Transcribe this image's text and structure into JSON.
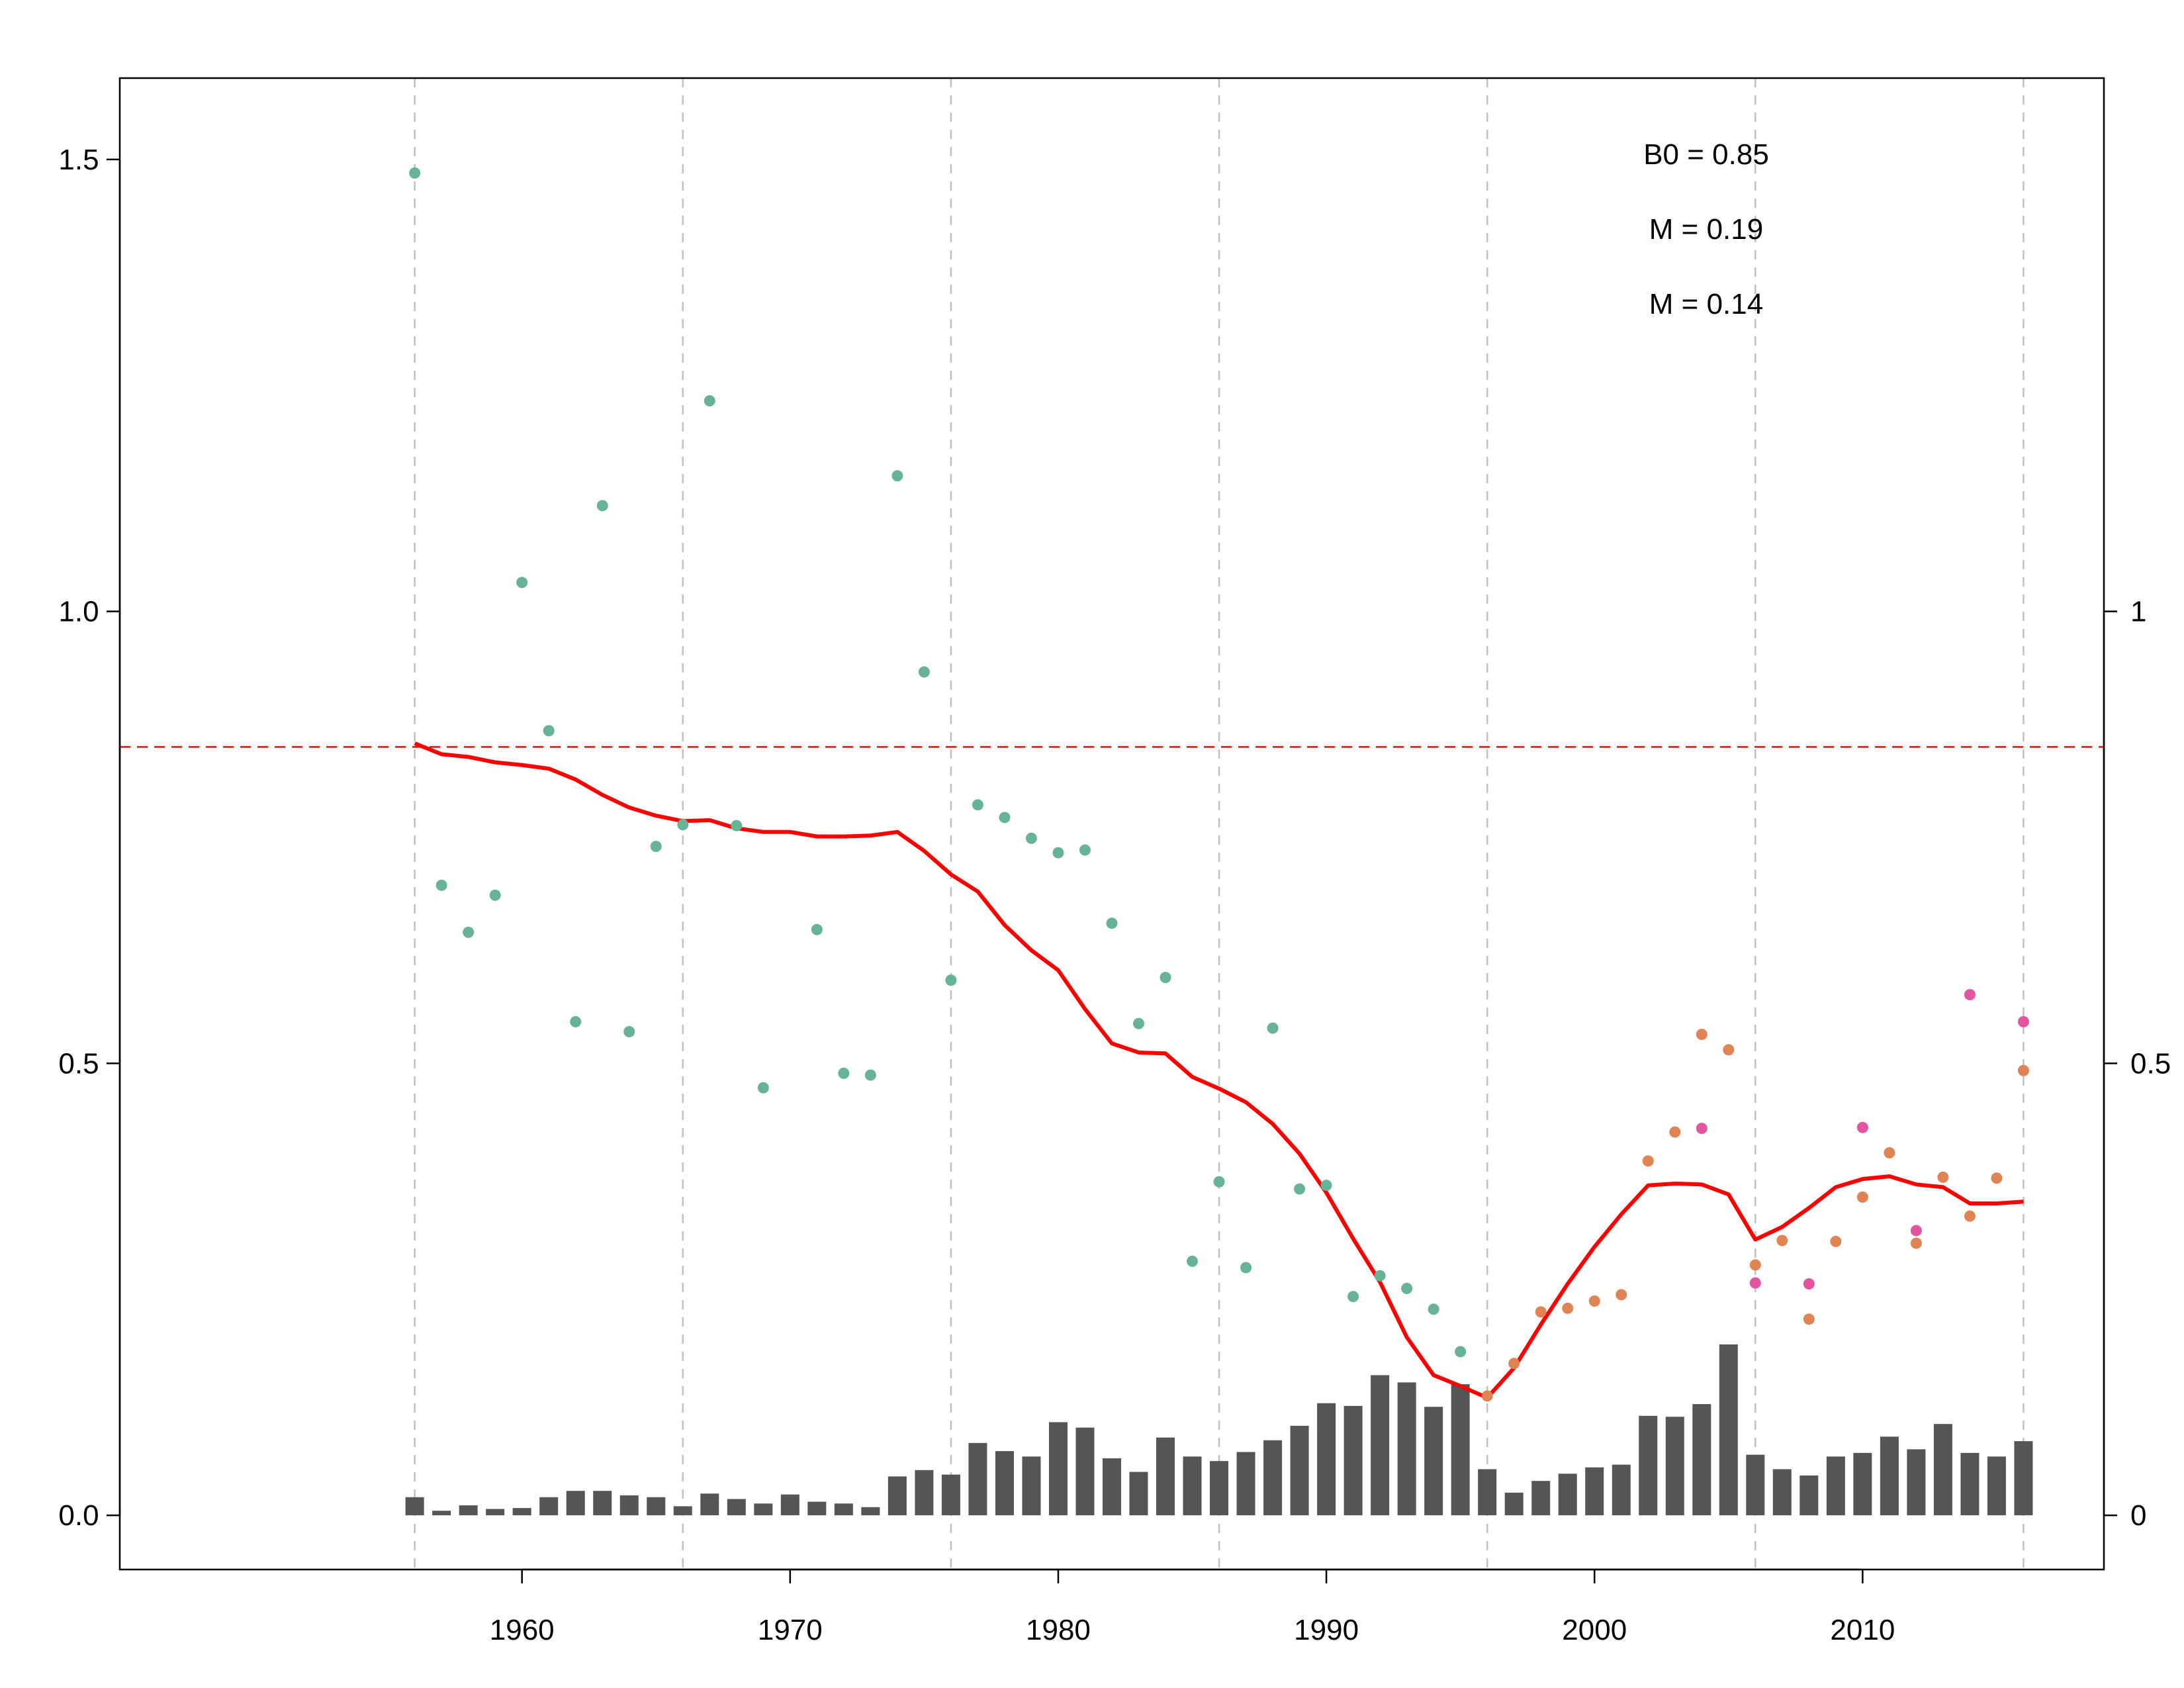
{
  "chart_data": {
    "type": "scatter",
    "title": "",
    "xlabel": "",
    "ylabel": "",
    "xlim": [
      1945,
      2019
    ],
    "ylim": [
      -0.06,
      1.59
    ],
    "y2lim": [
      -0.06,
      1.59
    ],
    "x_ticks": [
      "1960",
      "1970",
      "1980",
      "1990",
      "2000",
      "2010"
    ],
    "x_tick_values": [
      1960,
      1970,
      1980,
      1990,
      2000,
      2010
    ],
    "y_ticks": [
      "0.0",
      "0.5",
      "1.0",
      "1.5"
    ],
    "y_tick_values": [
      0,
      0.5,
      1.0,
      1.5
    ],
    "y2_ticks": [
      "0",
      "0.5",
      "1"
    ],
    "y2_tick_values": [
      0,
      0.5,
      1
    ],
    "vgrid": [
      1956,
      1966,
      1976,
      1986,
      1996,
      2006,
      2016
    ],
    "grid": "vertical dashed",
    "hline": {
      "name": "B0",
      "y": 0.85,
      "color": "#ff0000",
      "style": "dashed"
    },
    "annotations": [
      "B0 = 0.85",
      "M = 0.19",
      "M = 0.14"
    ],
    "annotation_placement": "top-right",
    "colors": {
      "line": "#ff0000",
      "bars": "#555555",
      "green": "#66b398",
      "orange": "#e08454",
      "pink": "#e4559f",
      "grid": "#c0c0c0"
    },
    "bars": {
      "x": [
        1956,
        1957,
        1958,
        1959,
        1960,
        1961,
        1962,
        1963,
        1964,
        1965,
        1966,
        1967,
        1968,
        1969,
        1970,
        1971,
        1972,
        1973,
        1974,
        1975,
        1976,
        1977,
        1978,
        1979,
        1980,
        1981,
        1982,
        1983,
        1984,
        1985,
        1986,
        1987,
        1988,
        1989,
        1990,
        1991,
        1992,
        1993,
        1994,
        1995,
        1996,
        1997,
        1998,
        1999,
        2000,
        2001,
        2002,
        2003,
        2004,
        2005,
        2006,
        2007,
        2008,
        2009,
        2010,
        2011,
        2012,
        2013,
        2014,
        2015,
        2016
      ],
      "values": [
        0.02,
        0.005,
        0.011,
        0.007,
        0.008,
        0.02,
        0.027,
        0.027,
        0.022,
        0.02,
        0.01,
        0.024,
        0.018,
        0.013,
        0.023,
        0.015,
        0.013,
        0.009,
        0.043,
        0.05,
        0.045,
        0.08,
        0.071,
        0.065,
        0.103,
        0.097,
        0.063,
        0.048,
        0.086,
        0.065,
        0.06,
        0.07,
        0.083,
        0.099,
        0.124,
        0.121,
        0.155,
        0.147,
        0.12,
        0.145,
        0.051,
        0.025,
        0.038,
        0.046,
        0.053,
        0.056,
        0.11,
        0.109,
        0.123,
        0.189,
        0.067,
        0.051,
        0.044,
        0.065,
        0.069,
        0.087,
        0.073,
        0.101,
        0.069,
        0.065,
        0.082
      ]
    },
    "series": [
      {
        "type": "line",
        "x": [
          1956,
          1957,
          1958,
          1959,
          1960,
          1961,
          1962,
          1963,
          1964,
          1965,
          1966,
          1967,
          1968,
          1969,
          1970,
          1971,
          1972,
          1973,
          1974,
          1975,
          1976,
          1977,
          1978,
          1979,
          1980,
          1981,
          1982,
          1983,
          1984,
          1985,
          1986,
          1987,
          1988,
          1989,
          1990,
          1991,
          1992,
          1993,
          1994,
          1995,
          1996,
          1997,
          1998,
          1999,
          2000,
          2001,
          2002,
          2003,
          2004,
          2005,
          2006,
          2007,
          2008,
          2009,
          2010,
          2011,
          2012,
          2013,
          2014,
          2015,
          2016
        ],
        "values": [
          0.854,
          0.842,
          0.839,
          0.833,
          0.83,
          0.826,
          0.814,
          0.797,
          0.783,
          0.774,
          0.768,
          0.769,
          0.76,
          0.756,
          0.756,
          0.751,
          0.751,
          0.752,
          0.756,
          0.735,
          0.709,
          0.69,
          0.653,
          0.625,
          0.603,
          0.56,
          0.522,
          0.512,
          0.511,
          0.485,
          0.472,
          0.457,
          0.433,
          0.4,
          0.357,
          0.306,
          0.258,
          0.197,
          0.155,
          0.143,
          0.13,
          0.163,
          0.211,
          0.256,
          0.297,
          0.333,
          0.365,
          0.367,
          0.366,
          0.355,
          0.305,
          0.319,
          0.34,
          0.363,
          0.372,
          0.375,
          0.366,
          0.363,
          0.345,
          0.345,
          0.347
        ]
      },
      {
        "type": "scatter",
        "color": "green",
        "x": [
          1956,
          1957,
          1958,
          1959,
          1960,
          1961,
          1962,
          1963,
          1964,
          1965,
          1966,
          1967,
          1968,
          1969,
          1971,
          1972,
          1973,
          1974,
          1975,
          1976,
          1977,
          1978,
          1979,
          1980,
          1981,
          1982,
          1983,
          1984,
          1985,
          1986,
          1987,
          1988,
          1989,
          1990,
          1991,
          1992,
          1993,
          1994,
          1995
        ],
        "values": [
          1.485,
          0.697,
          0.645,
          0.686,
          1.032,
          0.868,
          0.546,
          1.117,
          0.535,
          0.74,
          0.764,
          1.233,
          0.763,
          0.473,
          0.648,
          0.489,
          0.487,
          1.15,
          0.933,
          0.592,
          0.786,
          0.772,
          0.749,
          0.733,
          0.736,
          0.655,
          0.544,
          0.595,
          0.281,
          0.369,
          0.274,
          0.539,
          0.361,
          0.365,
          0.242,
          0.265,
          0.251,
          0.228,
          0.181
        ]
      },
      {
        "type": "scatter",
        "color": "orange",
        "x": [
          1996,
          1997,
          1998,
          1999,
          2000,
          2001,
          2002,
          2003,
          2004,
          2005,
          2006,
          2007,
          2008,
          2009,
          2010,
          2011,
          2012,
          2013,
          2014,
          2015,
          2016
        ],
        "values": [
          0.132,
          0.168,
          0.225,
          0.229,
          0.237,
          0.244,
          0.392,
          0.424,
          0.532,
          0.515,
          0.277,
          0.304,
          0.217,
          0.303,
          0.352,
          0.401,
          0.301,
          0.374,
          0.331,
          0.373,
          0.492
        ]
      },
      {
        "type": "scatter",
        "color": "pink",
        "x": [
          2004,
          2006,
          2008,
          2010,
          2012,
          2014,
          2016
        ],
        "values": [
          0.428,
          0.257,
          0.256,
          0.429,
          0.315,
          0.576,
          0.546
        ]
      }
    ]
  }
}
